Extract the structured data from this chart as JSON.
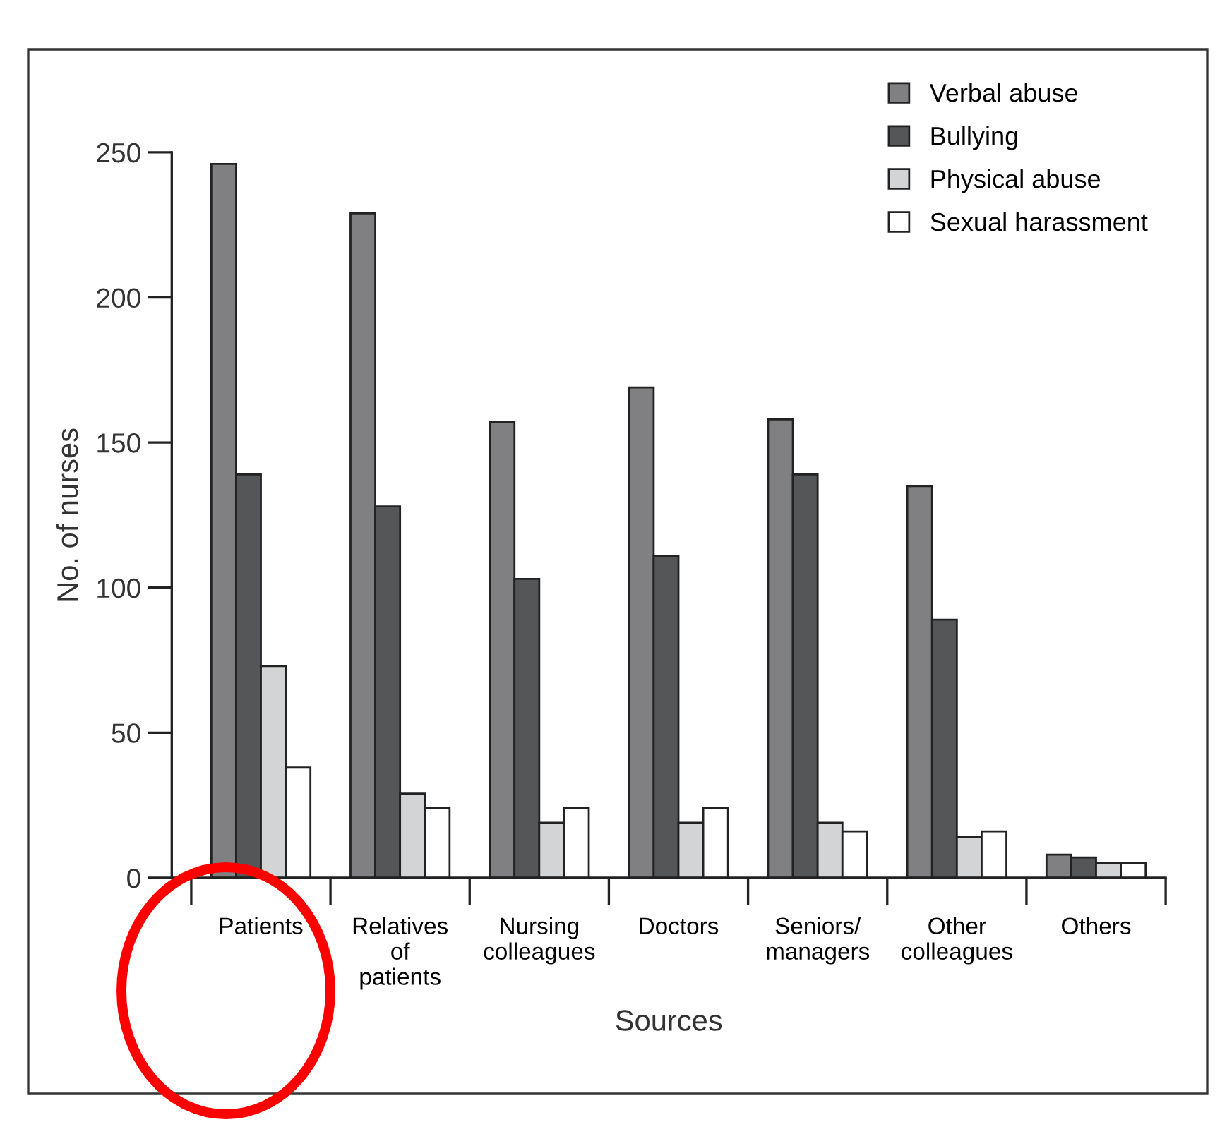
{
  "chart_data": {
    "type": "bar",
    "xlabel": "Sources",
    "ylabel": "No. of nurses",
    "categories": [
      "Patients",
      "Relatives\nof\npatients",
      "Nursing\ncolleagues",
      "Doctors",
      "Seniors/\nmanagers",
      "Other\ncolleagues",
      "Others"
    ],
    "series": [
      {
        "name": "Verbal abuse",
        "color": "#808083",
        "values": [
          246,
          229,
          157,
          169,
          158,
          135,
          8
        ]
      },
      {
        "name": "Bullying",
        "color": "#555658",
        "values": [
          139,
          128,
          103,
          111,
          139,
          89,
          7
        ]
      },
      {
        "name": "Physical abuse",
        "color": "#d3d4d6",
        "values": [
          73,
          29,
          19,
          19,
          19,
          14,
          5
        ]
      },
      {
        "name": "Sexual harassment",
        "color": "#ffffff",
        "values": [
          38,
          24,
          24,
          24,
          16,
          16,
          5
        ]
      }
    ],
    "ylim": [
      0,
      250
    ],
    "yticks": [
      0,
      50,
      100,
      150,
      200,
      250
    ],
    "grid": false,
    "legend": "top right"
  }
}
